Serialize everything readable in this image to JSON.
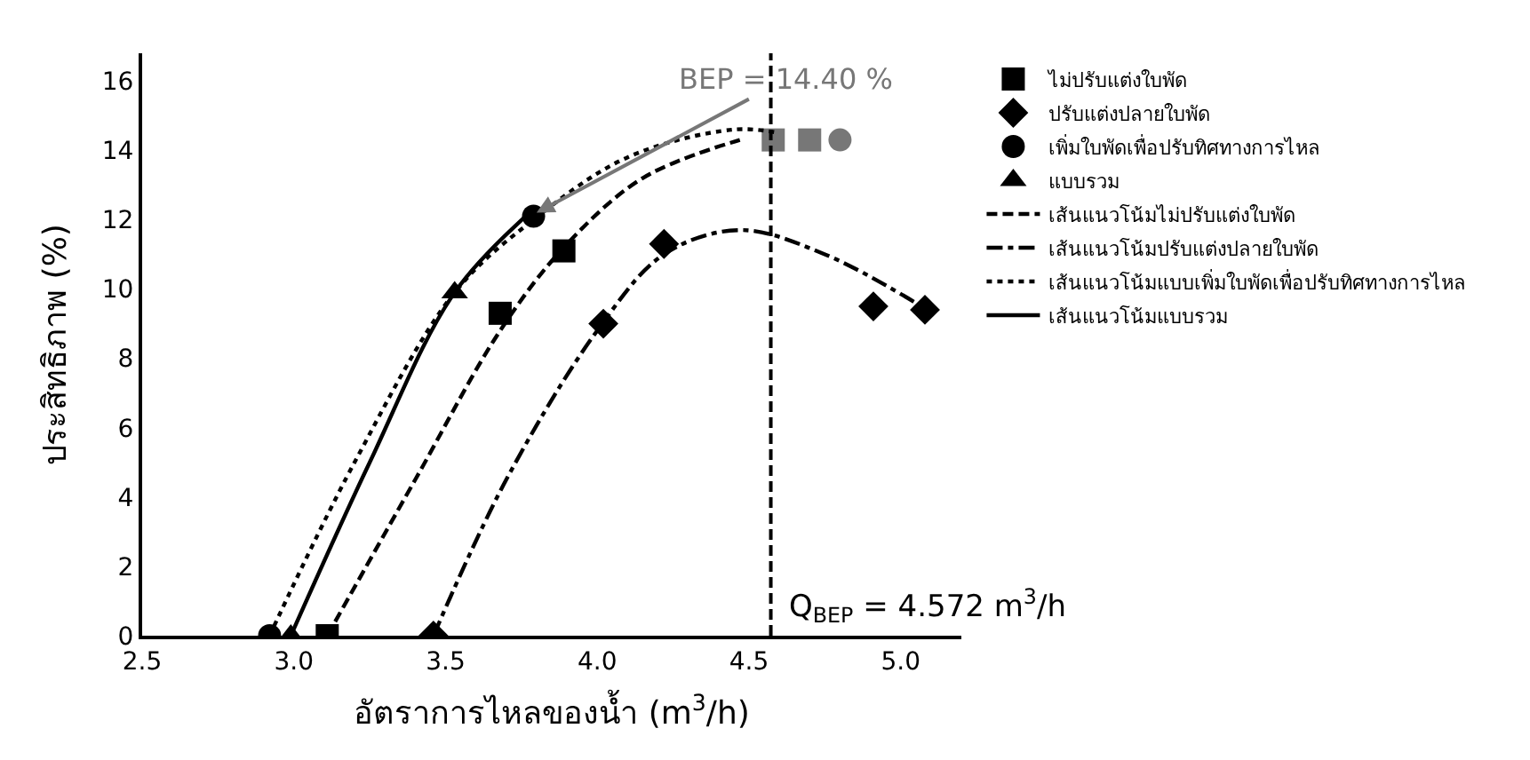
{
  "chart_data": {
    "type": "scatter",
    "xlabel": "อัตราการไหลของน้ำ (m$^{3}$/h)",
    "ylabel": "ประสิทธิภาพ (%)",
    "xlim": [
      2.5,
      5.2
    ],
    "ylim": [
      0,
      16.8
    ],
    "xticks": [
      2.5,
      {
        "value": 3,
        "label": "3.0"
      },
      3.5,
      {
        "value": 4,
        "label": "4.0"
      },
      4.5,
      {
        "value": 5,
        "label": "5.0"
      }
    ],
    "yticks": [
      0,
      2,
      4,
      6,
      8,
      10,
      12,
      14,
      16
    ],
    "legend": "right",
    "series": [
      {
        "name": "ไม่ปรับแต่งใบพัด",
        "marker": "square",
        "color": "#000000",
        "x": [
          3.11,
          3.68,
          3.89,
          4.58,
          4.7
        ],
        "values": [
          0,
          9.3,
          11.1,
          14.3,
          14.3
        ],
        "colors": [
          "#000000",
          "#000000",
          "#000000",
          "#777777",
          "#777777"
        ]
      },
      {
        "name": "ปรับแต่งปลายใบพัด",
        "marker": "diamond",
        "color": "#000000",
        "x": [
          3.46,
          4.02,
          4.22,
          4.91,
          5.08
        ],
        "values": [
          0,
          9.0,
          11.3,
          9.5,
          9.4
        ]
      },
      {
        "name": "เพิ่มใบพัดเพื่อปรับทิศทางการไหล",
        "marker": "circle",
        "color": "#000000",
        "x": [
          2.92,
          3.79,
          4.8
        ],
        "values": [
          0,
          12.1,
          14.3
        ],
        "colors": [
          "#000000",
          "#000000",
          "#777777"
        ]
      },
      {
        "name": "แบบรวม",
        "marker": "triangle",
        "color": "#000000",
        "x": [
          2.99,
          3.53
        ],
        "values": [
          0,
          9.9
        ]
      },
      {
        "name": "เส้นแนวโน้มไม่ปรับแต่งใบพัด",
        "type": "line",
        "line_style": "dashed",
        "color": "#000000",
        "x": [
          3.11,
          3.4,
          3.68,
          3.89,
          4.15,
          4.47
        ],
        "values": [
          0,
          4.5,
          8.8,
          11.2,
          13.2,
          14.3
        ]
      },
      {
        "name": "เส้นแนวโน้มปรับแต่งปลายใบพัด",
        "type": "line",
        "line_style": "dashdot",
        "color": "#000000",
        "x": [
          3.46,
          3.7,
          4.0,
          4.22,
          4.47,
          4.75,
          5.05
        ],
        "values": [
          0,
          4.5,
          8.8,
          11.0,
          11.7,
          11.0,
          9.6
        ]
      },
      {
        "name": "เส้นแนวโน้มแบบเพิ่มใบพัดเพื่อปรับทิศทางการไหล",
        "type": "line",
        "line_style": "dotted",
        "color": "#000000",
        "x": [
          2.92,
          3.2,
          3.53,
          3.79,
          4.1,
          4.45,
          4.6
        ],
        "values": [
          0,
          5.0,
          9.9,
          12.0,
          13.8,
          14.6,
          14.5
        ]
      },
      {
        "name": "เส้นแนวโน้มแบบรวม",
        "type": "line",
        "line_style": "solid",
        "color": "#000000",
        "x": [
          2.99,
          3.25,
          3.53,
          3.79
        ],
        "values": [
          0,
          5.0,
          9.9,
          12.3
        ]
      }
    ],
    "ref_lines": [
      {
        "axis": "x",
        "value": 4.572,
        "label": "Q$_{BEP}$ = 4.572 m$^{3}$/h",
        "line_style": "dashed",
        "color": "#000000"
      }
    ],
    "annotations": [
      {
        "text": "BEP = 14.40 %",
        "x": 3.8,
        "y": 12.2
      }
    ]
  }
}
